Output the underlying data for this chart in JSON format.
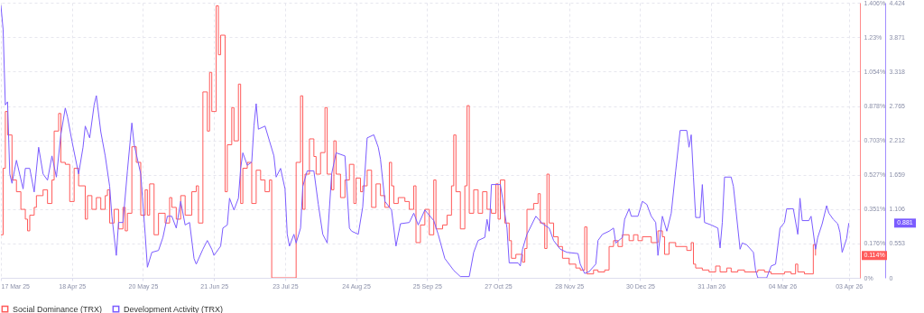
{
  "chart_data": {
    "type": "line",
    "xlim": [
      "2025-03-17",
      "2026-04-08"
    ],
    "xticks": [
      {
        "value": "2025-03-17",
        "label": "17 Mar 25"
      },
      {
        "value": "2025-04-18",
        "label": "18 Apr 25"
      },
      {
        "value": "2025-05-20",
        "label": "20 May 25"
      },
      {
        "value": "2025-06-21",
        "label": "21 Jun 25"
      },
      {
        "value": "2025-07-23",
        "label": "23 Jul 25"
      },
      {
        "value": "2025-08-24",
        "label": "24 Aug 25"
      },
      {
        "value": "2025-09-25",
        "label": "25 Sep 25"
      },
      {
        "value": "2025-10-27",
        "label": "27 Oct 25"
      },
      {
        "value": "2025-11-28",
        "label": "28 Nov 25"
      },
      {
        "value": "2025-12-30",
        "label": "30 Dec 25"
      },
      {
        "value": "2026-01-31",
        "label": "31 Jan 26"
      },
      {
        "value": "2026-03-04",
        "label": "04 Mar 26"
      },
      {
        "value": "2026-04-03",
        "label": "03 Apr 26"
      }
    ],
    "ylim": [
      0,
      1.406
    ],
    "yticks": [
      {
        "value": 0,
        "label": "0%"
      },
      {
        "value": 0.176,
        "label": "0.176%"
      },
      {
        "value": 0.351,
        "label": "0.351%"
      },
      {
        "value": 0.527,
        "label": "0.527%"
      },
      {
        "value": 0.703,
        "label": "0.703%"
      },
      {
        "value": 0.878,
        "label": "0.878%"
      },
      {
        "value": 1.054,
        "label": "1.054%"
      },
      {
        "value": 1.23,
        "label": "1.23%"
      },
      {
        "value": 1.406,
        "label": "1.406%"
      }
    ],
    "y2lim": [
      0,
      4.424
    ],
    "y2ticks": [
      0,
      0.553,
      1.106,
      1.659,
      2.212,
      2.765,
      3.318,
      3.871,
      4.424
    ],
    "grid": true,
    "legend": "bottom",
    "annotations": [
      "0.114%",
      "0.881"
    ],
    "series": [
      {
        "name": "Social Dominance (TRX)",
        "color": "#ff5a5a",
        "type": "step",
        "x": [
          "2025-03-17",
          "2025-03-18",
          "2025-03-19",
          "2025-03-20",
          "2025-03-22",
          "2025-03-24",
          "2025-03-26",
          "2025-03-28",
          "2025-03-29",
          "2025-03-30",
          "2025-04-01",
          "2025-04-02",
          "2025-04-05",
          "2025-04-07",
          "2025-04-09",
          "2025-04-10",
          "2025-04-12",
          "2025-04-13",
          "2025-04-15",
          "2025-04-17",
          "2025-04-19",
          "2025-04-21",
          "2025-04-24",
          "2025-04-25",
          "2025-04-27",
          "2025-04-29",
          "2025-05-01",
          "2025-05-03",
          "2025-05-04",
          "2025-05-05",
          "2025-05-07",
          "2025-05-09",
          "2025-05-11",
          "2025-05-12",
          "2025-05-13",
          "2025-05-15",
          "2025-05-17",
          "2025-05-19",
          "2025-05-21",
          "2025-05-22",
          "2025-05-23",
          "2025-05-25",
          "2025-05-27",
          "2025-05-30",
          "2025-06-01",
          "2025-06-02",
          "2025-06-04",
          "2025-06-06",
          "2025-06-08",
          "2025-06-11",
          "2025-06-13",
          "2025-06-14",
          "2025-06-16",
          "2025-06-18",
          "2025-06-19",
          "2025-06-20",
          "2025-06-22",
          "2025-06-23",
          "2025-06-24",
          "2025-06-26",
          "2025-06-27",
          "2025-06-29",
          "2025-06-30",
          "2025-07-02",
          "2025-07-03",
          "2025-07-04",
          "2025-07-06",
          "2025-07-08",
          "2025-07-10",
          "2025-07-12",
          "2025-07-14",
          "2025-07-16",
          "2025-07-17",
          "2025-07-28",
          "2025-07-30",
          "2025-07-31",
          "2025-08-01",
          "2025-08-03",
          "2025-08-05",
          "2025-08-06",
          "2025-08-08",
          "2025-08-10",
          "2025-08-11",
          "2025-08-13",
          "2025-08-14",
          "2025-08-15",
          "2025-08-17",
          "2025-08-19",
          "2025-08-21",
          "2025-08-23",
          "2025-08-24",
          "2025-08-26",
          "2025-08-27",
          "2025-08-29",
          "2025-08-31",
          "2025-09-02",
          "2025-09-04",
          "2025-09-06",
          "2025-09-08",
          "2025-09-09",
          "2025-09-10",
          "2025-09-12",
          "2025-09-15",
          "2025-09-17",
          "2025-09-19",
          "2025-09-20",
          "2025-09-22",
          "2025-09-24",
          "2025-09-26",
          "2025-09-28",
          "2025-09-29",
          "2025-10-02",
          "2025-10-04",
          "2025-10-06",
          "2025-10-07",
          "2025-10-08",
          "2025-10-10",
          "2025-10-12",
          "2025-10-13",
          "2025-10-14",
          "2025-10-16",
          "2025-10-18",
          "2025-10-20",
          "2025-10-22",
          "2025-10-24",
          "2025-10-26",
          "2025-10-27",
          "2025-10-28",
          "2025-10-30",
          "2025-11-01",
          "2025-11-02",
          "2025-11-04",
          "2025-11-07",
          "2025-11-08",
          "2025-11-09",
          "2025-11-12",
          "2025-11-14",
          "2025-11-15",
          "2025-11-17",
          "2025-11-18",
          "2025-11-19",
          "2025-11-21",
          "2025-11-23",
          "2025-11-25",
          "2025-11-28",
          "2025-12-01",
          "2025-12-03",
          "2025-12-05",
          "2025-12-06",
          "2025-12-09",
          "2025-12-11",
          "2025-12-14",
          "2025-12-16",
          "2025-12-18",
          "2025-12-20",
          "2025-12-22",
          "2025-12-25",
          "2025-12-27",
          "2025-12-29",
          "2025-12-31",
          "2026-01-04",
          "2026-01-07",
          "2026-01-09",
          "2026-01-10",
          "2026-01-12",
          "2026-01-15",
          "2026-01-20",
          "2026-01-22",
          "2026-01-23",
          "2026-01-24",
          "2026-01-27",
          "2026-01-30",
          "2026-02-02",
          "2026-02-04",
          "2026-02-07",
          "2026-02-09",
          "2026-02-12",
          "2026-02-15",
          "2026-02-21",
          "2026-02-24",
          "2026-02-27",
          "2026-03-05",
          "2026-03-08",
          "2026-03-10",
          "2026-03-11",
          "2026-03-14",
          "2026-03-18",
          "2026-03-19"
        ],
        "values": [
          0.22,
          0.56,
          0.85,
          0.73,
          0.5,
          0.44,
          0.35,
          0.3,
          0.24,
          0.32,
          0.36,
          0.42,
          0.45,
          0.38,
          0.5,
          0.75,
          0.84,
          0.59,
          0.58,
          0.39,
          0.56,
          0.47,
          0.3,
          0.42,
          0.35,
          0.41,
          0.35,
          0.42,
          0.45,
          0.28,
          0.35,
          0.25,
          0.36,
          0.24,
          0.33,
          0.67,
          0.59,
          0.32,
          0.45,
          0.32,
          0.48,
          0.22,
          0.33,
          0.28,
          0.41,
          0.36,
          0.3,
          0.42,
          0.32,
          0.44,
          0.47,
          0.28,
          0.95,
          0.75,
          1.05,
          0.85,
          1.39,
          1.14,
          1.24,
          0.44,
          0.68,
          0.87,
          0.7,
          0.99,
          0.38,
          0.56,
          0.59,
          0.38,
          0.55,
          0.5,
          0.44,
          0.5,
          0,
          0.59,
          0.93,
          0.35,
          0.53,
          0.71,
          0.62,
          0.53,
          0.64,
          0.87,
          0.53,
          0.45,
          0.7,
          0.53,
          0.41,
          0.5,
          0.58,
          0.38,
          0.51,
          0.44,
          0.47,
          0.55,
          0.36,
          0.48,
          0.42,
          0.36,
          0.59,
          0.47,
          0.38,
          0.41,
          0.39,
          0.35,
          0.47,
          0.18,
          0.27,
          0.35,
          0.22,
          0.5,
          0.25,
          0.27,
          0.32,
          0.47,
          0.73,
          0.44,
          0.25,
          0.47,
          0.88,
          0.33,
          0.45,
          0.33,
          0.44,
          0.35,
          0.33,
          0.48,
          0.3,
          0.5,
          0.28,
          0.19,
          0.1,
          0.12,
          0.08,
          0.15,
          0.35,
          0.38,
          0.43,
          0.28,
          0.15,
          0.53,
          0.28,
          0.21,
          0.16,
          0.1,
          0.07,
          0.05,
          0.04,
          0.26,
          0.02,
          0.04,
          0.03,
          0.04,
          0.16,
          0.19,
          0.16,
          0.22,
          0.19,
          0.22,
          0.19,
          0.21,
          0.18,
          0.24,
          0.21,
          0.12,
          0.18,
          0.16,
          0.14,
          0.18,
          0.07,
          0.05,
          0.04,
          0.03,
          0.06,
          0.03,
          0.05,
          0.03,
          0.04,
          0.03,
          0.04,
          0.03,
          0.02,
          0.03,
          0.02,
          0.07,
          0.03,
          0.02,
          0.17,
          0.114
        ]
      },
      {
        "name": "Development Activity (TRX)",
        "color": "#7b5cff",
        "axis": "y2",
        "x": [
          "2025-03-17",
          "2025-03-18",
          "2025-03-19",
          "2025-03-20",
          "2025-03-21",
          "2025-03-22",
          "2025-03-24",
          "2025-03-27",
          "2025-03-28",
          "2025-03-30",
          "2025-04-01",
          "2025-04-03",
          "2025-04-05",
          "2025-04-07",
          "2025-04-09",
          "2025-04-11",
          "2025-04-13",
          "2025-04-15",
          "2025-04-16",
          "2025-04-18",
          "2025-04-21",
          "2025-04-23",
          "2025-04-24",
          "2025-04-26",
          "2025-04-28",
          "2025-04-29",
          "2025-05-01",
          "2025-05-03",
          "2025-05-05",
          "2025-05-06",
          "2025-05-08",
          "2025-05-09",
          "2025-05-11",
          "2025-05-13",
          "2025-05-15",
          "2025-05-16",
          "2025-05-19",
          "2025-05-21",
          "2025-05-22",
          "2025-05-24",
          "2025-05-27",
          "2025-05-29",
          "2025-05-31",
          "2025-06-02",
          "2025-06-04",
          "2025-06-06",
          "2025-06-08",
          "2025-06-10",
          "2025-06-12",
          "2025-06-13",
          "2025-06-16",
          "2025-06-18",
          "2025-06-20",
          "2025-06-21",
          "2025-06-24",
          "2025-06-25",
          "2025-06-27",
          "2025-06-28",
          "2025-06-30",
          "2025-07-02",
          "2025-07-03",
          "2025-07-04",
          "2025-07-06",
          "2025-07-08",
          "2025-07-09",
          "2025-07-10",
          "2025-07-11",
          "2025-07-14",
          "2025-07-16",
          "2025-07-18",
          "2025-07-19",
          "2025-07-21",
          "2025-07-23",
          "2025-07-24",
          "2025-07-25",
          "2025-07-27",
          "2025-07-28",
          "2025-07-30",
          "2025-07-31",
          "2025-08-02",
          "2025-08-05",
          "2025-08-07",
          "2025-08-09",
          "2025-08-11",
          "2025-08-13",
          "2025-08-15",
          "2025-08-19",
          "2025-08-21",
          "2025-08-22",
          "2025-08-25",
          "2025-08-27",
          "2025-08-29",
          "2025-09-01",
          "2025-09-03",
          "2025-09-04",
          "2025-09-06",
          "2025-09-09",
          "2025-09-11",
          "2025-09-13",
          "2025-09-17",
          "2025-09-19",
          "2025-09-21",
          "2025-09-24",
          "2025-09-28",
          "2025-09-30",
          "2025-10-03",
          "2025-10-07",
          "2025-10-10",
          "2025-10-14",
          "2025-10-16",
          "2025-10-18",
          "2025-10-21",
          "2025-10-22",
          "2025-10-23",
          "2025-10-24",
          "2025-10-28",
          "2025-10-29",
          "2025-10-31",
          "2025-11-01",
          "2025-11-05",
          "2025-11-06",
          "2025-11-07",
          "2025-11-09",
          "2025-11-13",
          "2025-11-16",
          "2025-11-19",
          "2025-11-21",
          "2025-11-24",
          "2025-11-27",
          "2025-12-02",
          "2025-12-03",
          "2025-12-05",
          "2025-12-07",
          "2025-12-10",
          "2025-12-11",
          "2025-12-13",
          "2025-12-16",
          "2025-12-18",
          "2025-12-19",
          "2025-12-22",
          "2025-12-23",
          "2025-12-25",
          "2025-12-26",
          "2025-12-29",
          "2025-12-31",
          "2026-01-02",
          "2026-01-04",
          "2026-01-06",
          "2026-01-07",
          "2026-01-09",
          "2026-01-11",
          "2026-01-13",
          "2026-01-15",
          "2026-01-17",
          "2026-01-20",
          "2026-01-21",
          "2026-01-22",
          "2026-01-23",
          "2026-01-24",
          "2026-01-26",
          "2026-01-27",
          "2026-01-28",
          "2026-01-31",
          "2026-02-03",
          "2026-02-04",
          "2026-02-05",
          "2026-02-06",
          "2026-02-09",
          "2026-02-10",
          "2026-02-11",
          "2026-02-13",
          "2026-02-14",
          "2026-02-16",
          "2026-02-19",
          "2026-02-20",
          "2026-02-21",
          "2026-02-25",
          "2026-02-27",
          "2026-03-01",
          "2026-03-03",
          "2026-03-05",
          "2026-03-06",
          "2026-03-09",
          "2026-03-11",
          "2026-03-12",
          "2026-03-13",
          "2026-03-16",
          "2026-03-17",
          "2026-03-19",
          "2026-03-20",
          "2026-03-22",
          "2026-03-24",
          "2026-03-25",
          "2026-03-27",
          "2026-03-29",
          "2026-03-30",
          "2026-03-31",
          "2026-04-02",
          "2026-04-03"
        ],
        "values": [
          4.38,
          3.99,
          2.78,
          2.83,
          1.67,
          1.52,
          1.89,
          1.43,
          1.76,
          1.76,
          1.38,
          2.1,
          1.67,
          1.57,
          1.96,
          1.62,
          2.3,
          2.73,
          2.59,
          2.2,
          1.67,
          2.1,
          2.44,
          2.25,
          2.78,
          2.93,
          2.35,
          1.96,
          1.47,
          0.99,
          0.36,
          0.89,
          0.89,
          1.72,
          2.49,
          2.15,
          1.67,
          0.7,
          0.17,
          0.41,
          0.44,
          0.65,
          0.99,
          0.99,
          0.8,
          1.23,
          0.85,
          0.89,
          0.31,
          0.22,
          0.46,
          0.6,
          0.46,
          0.36,
          0.51,
          0.8,
          0.85,
          1.28,
          1.09,
          1.28,
          1.76,
          2.01,
          1.81,
          1.86,
          2.44,
          2.8,
          2.39,
          2.44,
          2.2,
          1.96,
          1.62,
          1.76,
          1.43,
          0.7,
          0.51,
          0.7,
          0.56,
          0.8,
          1.47,
          1.72,
          1.72,
          1.18,
          0.7,
          0.56,
          1.67,
          2.01,
          1.96,
          0.8,
          0.75,
          0.7,
          1.14,
          2.25,
          2.3,
          2.1,
          1.91,
          1.23,
          1.09,
          0.51,
          0.87,
          0.89,
          1.04,
          0.85,
          1.09,
          0.92,
          0.7,
          0.31,
          0.12,
          0.02,
          0.02,
          0.41,
          0.6,
          0.65,
          0.94,
          0.75,
          1.5,
          1.5,
          1.28,
          0.8,
          0.24,
          0.24,
          0.19,
          0.46,
          0.7,
          0.99,
          0.87,
          0.8,
          0.6,
          0.46,
          0.41,
          0.39,
          0.22,
          0.07,
          0.1,
          0.22,
          0.6,
          0.7,
          0.75,
          0.8,
          0.56,
          0.65,
          0.94,
          1.11,
          0.99,
          0.99,
          1.23,
          1.18,
          0.99,
          0.89,
          0.36,
          0.99,
          0.75,
          1.04,
          1.72,
          2.37,
          2.37,
          2.1,
          2.3,
          1.62,
          0.97,
          0.97,
          1.5,
          0.89,
          0.85,
          0.8,
          0.48,
          0.89,
          1.62,
          1.62,
          1.47,
          1.14,
          0.46,
          0.56,
          0.53,
          0.41,
          0.12,
          0,
          0,
          0.19,
          0.22,
          0.8,
          0.89,
          1.11,
          1.11,
          0.7,
          1.28,
          0.92,
          0.92,
          0.99,
          0.46,
          0.65,
          0.87,
          1.16,
          1.04,
          0.94,
          0.87,
          0.73,
          0.41,
          0.63,
          0.88
        ]
      }
    ]
  }
}
